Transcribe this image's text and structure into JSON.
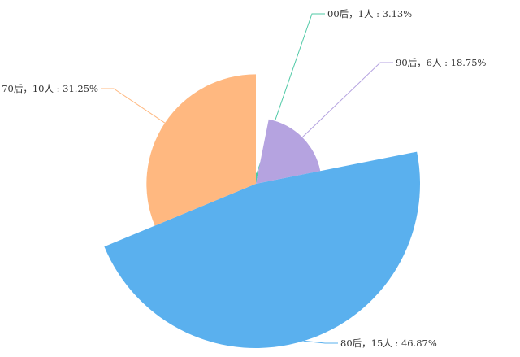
{
  "chart_data": {
    "type": "pie",
    "variant": "rose (radius proportional to value)",
    "categories": [
      "00后",
      "90后",
      "80后",
      "70后"
    ],
    "counts": [
      1,
      6,
      15,
      10
    ],
    "unit": "人",
    "percents": [
      3.13,
      18.75,
      46.87,
      31.25
    ],
    "labels": [
      "00后，1人 : 3.13%",
      "90后，6人 : 18.75%",
      "80后，15人 : 46.87%",
      "70后，10人 : 31.25%"
    ],
    "colors": [
      "#4fc9a6",
      "#b5a3e0",
      "#5ab0ee",
      "#ffb880"
    ],
    "legend": "none",
    "grid": false
  }
}
